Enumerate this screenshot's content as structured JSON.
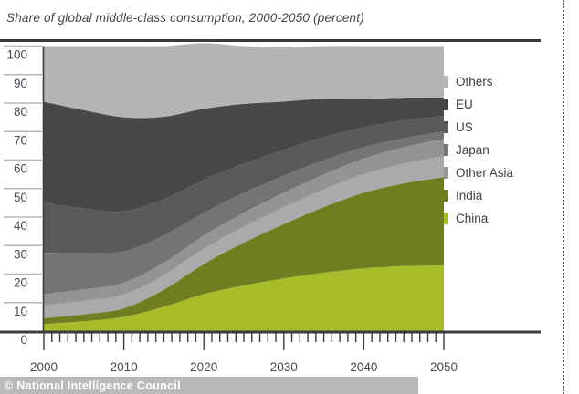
{
  "title": "Share of global middle-class consumption, 2000-2050 (percent)",
  "credit": "© National Intelligence Council",
  "colors": {
    "axis": "#3c3b40",
    "tick_label": "#4b4750",
    "grid_tick": "#b6b6b8",
    "others": "#b3b4b6",
    "eu": "#48484a",
    "us": "#5a5a5c",
    "japan": "#747476",
    "other_asia": "#949496",
    "other_asia_light_edge": "#a9aaac",
    "india": "#6f7e21",
    "china": "#a8bb28"
  },
  "chart_data": {
    "type": "area",
    "stacked": true,
    "title": "Share of global middle-class consumption, 2000-2050 (percent)",
    "xlabel": "",
    "ylabel": "",
    "x": [
      2000,
      2005,
      2010,
      2015,
      2020,
      2025,
      2030,
      2035,
      2040,
      2045,
      2050
    ],
    "x_tick_labels": [
      "2000",
      "2010",
      "2020",
      "2030",
      "2040",
      "2050"
    ],
    "y_tick_labels": [
      "100",
      "90",
      "80",
      "70",
      "60",
      "50",
      "40",
      "30",
      "20",
      "10",
      "0"
    ],
    "ylim": [
      0,
      100
    ],
    "grid": false,
    "legend_position": "right",
    "legend_order_top_to_bottom": [
      "Others",
      "EU",
      "US",
      "Japan",
      "Other Asia",
      "India",
      "China"
    ],
    "series": [
      {
        "name": "China",
        "color": "#a8bb28",
        "values": [
          2.5,
          3.5,
          5,
          8.5,
          13,
          16,
          18.5,
          20.5,
          22,
          22.8,
          23
        ]
      },
      {
        "name": "India",
        "color": "#6f7e21",
        "values": [
          2,
          2.4,
          3,
          6,
          10.5,
          15,
          19,
          23,
          26.5,
          29,
          31
        ]
      },
      {
        "name": "Other Asia",
        "color": "#949496",
        "values": [
          8.5,
          8.7,
          9,
          9.5,
          10,
          10.5,
          11,
          11.5,
          12,
          12.7,
          13.5
        ]
      },
      {
        "name": "Japan",
        "color": "#747476",
        "values": [
          14.5,
          12.7,
          11,
          9.5,
          8,
          7,
          6,
          5,
          4,
          3.2,
          2.5
        ]
      },
      {
        "name": "US",
        "color": "#5a5a5c",
        "values": [
          17.5,
          15.7,
          14,
          12.7,
          11.5,
          10.2,
          9,
          8,
          7,
          6.2,
          5.5
        ]
      },
      {
        "name": "EU",
        "color": "#48484a",
        "values": [
          35.5,
          34.5,
          33,
          29,
          25,
          21,
          17,
          13.5,
          10,
          8,
          6.5
        ]
      },
      {
        "name": "Others",
        "color": "#b3b4b6",
        "values": [
          19.5,
          22.5,
          25,
          24.8,
          23,
          20.3,
          19,
          18.5,
          18.5,
          18.1,
          18
        ]
      }
    ]
  }
}
